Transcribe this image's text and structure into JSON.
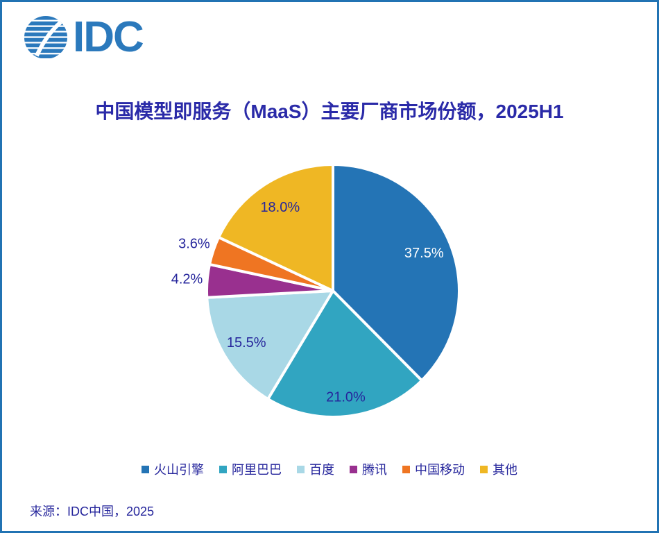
{
  "page": {
    "border_color": "#2173B3",
    "background_color": "#FFFFFF",
    "navy_text_color": "#26269C"
  },
  "logo": {
    "text": "IDC",
    "color": "#2B79BC"
  },
  "header": {
    "title": "中国模型即服务（MaaS）主要厂商市场份额，2025H1",
    "title_color": "#2A2AA8"
  },
  "chart_data": {
    "type": "pie",
    "title": "中国模型即服务（MaaS）主要厂商市场份额，2025H1",
    "unit": "%",
    "start_angle_deg": 0,
    "direction": "clockwise",
    "legend_position": "bottom",
    "series": [
      {
        "name": "火山引擎",
        "value": 37.5,
        "label": "37.5%",
        "color": "#2474B5"
      },
      {
        "name": "阿里巴巴",
        "value": 21.0,
        "label": "21.0%",
        "color": "#31A5C1"
      },
      {
        "name": "百度",
        "value": 15.5,
        "label": "15.5%",
        "color": "#A9D8E6"
      },
      {
        "name": "腾讯",
        "value": 4.2,
        "label": "4.2%",
        "color": "#99308F"
      },
      {
        "name": "中国移动",
        "value": 3.6,
        "label": "3.6%",
        "color": "#EF7522"
      },
      {
        "name": "其他",
        "value": 18.0,
        "label": "18.0%",
        "color": "#EFB724"
      }
    ],
    "layout": {
      "center_x": 477,
      "center_y": 416,
      "radius": 182,
      "slice_stroke_color": "#FFFFFF",
      "slice_stroke_width": 4,
      "label_radius_factors": [
        0.78,
        0.85,
        0.8,
        1.16,
        1.16,
        0.78
      ],
      "label_colors": [
        "#FFFFFF",
        "#26269C",
        "#26269C",
        "#26269C",
        "#26269C",
        "#26269C"
      ]
    }
  },
  "footer": {
    "source": "来源：IDC中国，2025"
  }
}
